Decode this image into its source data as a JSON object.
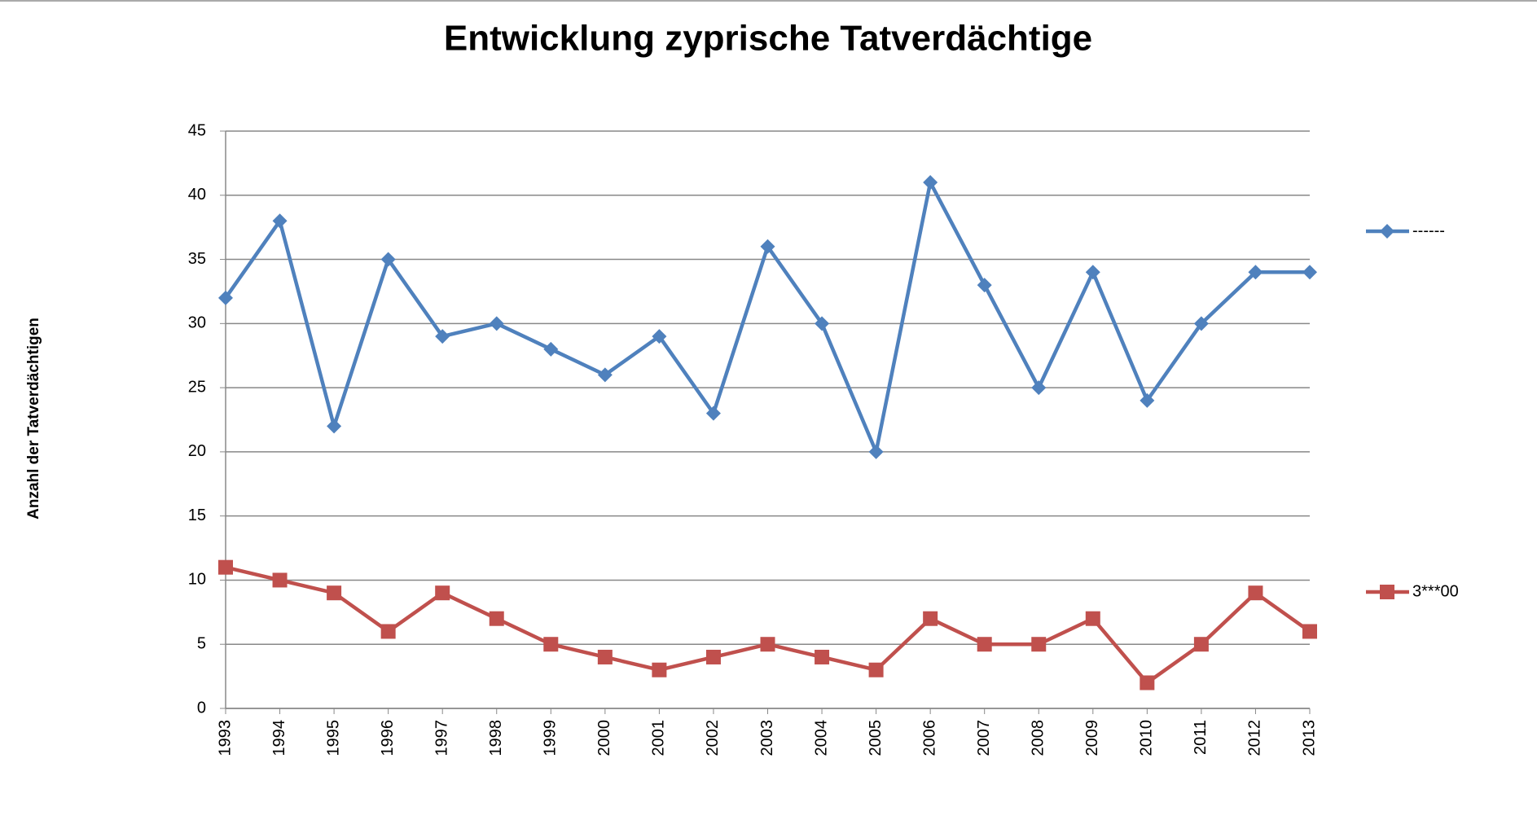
{
  "chart_data": {
    "type": "line",
    "title": "Entwicklung zyprische Tatverdächtige",
    "y_label": "Anzahl der Tatverdächtigen",
    "categories": [
      "1993",
      "1994",
      "1995",
      "1996",
      "1997",
      "1998",
      "1999",
      "2000",
      "2001",
      "2002",
      "2003",
      "2004",
      "2005",
      "2006",
      "2007",
      "2008",
      "2009",
      "2010",
      "2011",
      "2012",
      "2013"
    ],
    "series": [
      {
        "name": "------",
        "color": "#4f81bd",
        "marker": "diamond",
        "values": [
          32,
          38,
          22,
          35,
          29,
          30,
          28,
          26,
          29,
          23,
          36,
          30,
          20,
          41,
          33,
          25,
          34,
          24,
          30,
          34,
          34
        ]
      },
      {
        "name": "3***00",
        "color": "#c0504d",
        "marker": "square",
        "values": [
          11,
          10,
          9,
          6,
          9,
          7,
          5,
          4,
          3,
          4,
          5,
          4,
          3,
          7,
          5,
          5,
          7,
          2,
          5,
          9,
          6
        ]
      }
    ],
    "ylim": [
      0,
      45
    ],
    "yticks": [
      0,
      5,
      10,
      15,
      20,
      25,
      30,
      35,
      40,
      45
    ],
    "grid": true
  }
}
